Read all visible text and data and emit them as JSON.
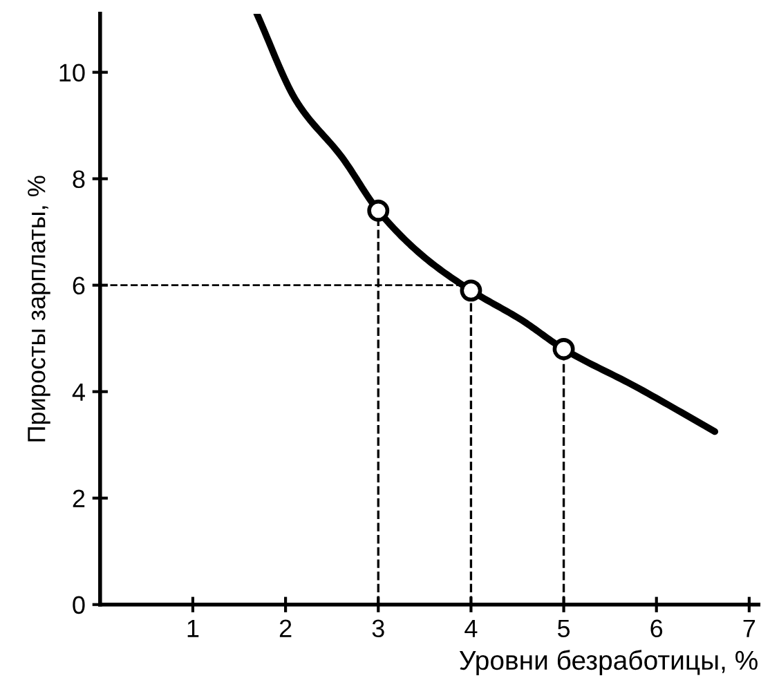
{
  "chart_data": {
    "type": "line",
    "xlabel": "Уровни безработицы, %",
    "ylabel": "Приросты зарплаты, %",
    "xlim": [
      0,
      7.1
    ],
    "ylim": [
      0,
      11.1
    ],
    "xticks": [
      1,
      2,
      3,
      4,
      5,
      6,
      7
    ],
    "yticks": [
      0,
      2,
      4,
      6,
      8,
      10
    ],
    "grid": false,
    "legend": false,
    "series": [
      {
        "color": "#000000",
        "marker": "none",
        "line_style": "solid",
        "x": [
          1.69,
          2.12,
          2.61,
          3,
          3.48,
          4,
          4.55,
          5,
          5.77,
          6.63
        ],
        "values": [
          11.1,
          9.45,
          8.4,
          7.4,
          6.55,
          5.9,
          5.34,
          4.8,
          4.1,
          3.25
        ]
      },
      {
        "type": "scatter",
        "color": "#000000",
        "marker": "circle",
        "x": [
          3,
          4,
          5
        ],
        "values": [
          7.4,
          5.9,
          4.8
        ]
      }
    ],
    "ref_lines": [
      {
        "axis": "x",
        "value": 3,
        "line_style": "dashed",
        "color": "#000000"
      },
      {
        "axis": "x",
        "value": 4,
        "line_style": "dashed",
        "color": "#000000"
      },
      {
        "axis": "x",
        "value": 5,
        "line_style": "dashed",
        "color": "#000000"
      },
      {
        "axis": "y",
        "value": 6,
        "line_style": "dashed",
        "color": "#000000"
      }
    ]
  }
}
